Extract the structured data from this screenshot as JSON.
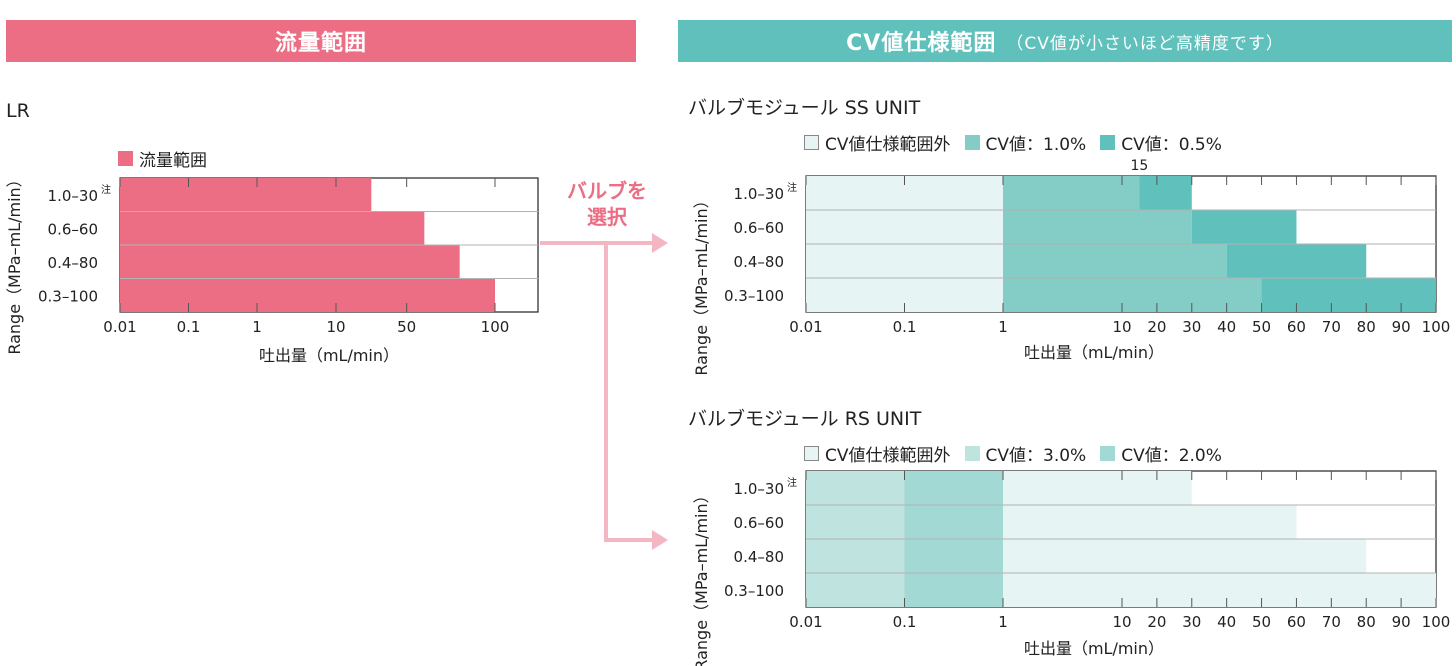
{
  "colors": {
    "pink": "#ec6e84",
    "teal": "#5fc0bc",
    "arrow": "#f4b6c2",
    "outside_fill": "#e6f4f3",
    "cv_1_0": "#83cdc6",
    "cv_0_5": "#5fc0bc",
    "cv_3_0": "#bfe3de",
    "cv_2_0": "#a3d9d4",
    "grid": "#b3b3b3",
    "axis": "#222222"
  },
  "banners": {
    "left": "流量範囲",
    "right_main": "CV値仕様範囲",
    "right_sub": "（CV値が小さいほど高精度です）"
  },
  "arrow_label": [
    "バルブを",
    "選択"
  ],
  "chart_data": [
    {
      "type": "bar",
      "orientation": "horizontal",
      "title": "LR",
      "x_scale": "custom-log",
      "xlim": [
        0.01,
        100
      ],
      "xticks": [
        "0.01",
        "0.1",
        "1",
        "10",
        "50",
        "100"
      ],
      "xlabel": "吐出量（mL/min）",
      "ylabel": "Range（MPa–mL/min）",
      "categories": [
        "1.0–30",
        "0.6–60",
        "0.4–80",
        "0.3–100"
      ],
      "note_marks": [
        "注",
        "",
        "",
        ""
      ],
      "legend": [
        {
          "name": "流量範囲",
          "color": "#ec6e84"
        }
      ],
      "series": [
        {
          "name": "流量範囲",
          "color": "#ec6e84",
          "ranges": [
            [
              0.01,
              30
            ],
            [
              0.01,
              60
            ],
            [
              0.01,
              80
            ],
            [
              0.01,
              100
            ]
          ]
        }
      ],
      "grid": true
    },
    {
      "type": "bar",
      "orientation": "horizontal",
      "title": "バルブモジュール SS UNIT",
      "x_scale": "custom-log",
      "xlim": [
        0.01,
        100
      ],
      "xticks": [
        "0.01",
        "0.1",
        "1",
        "10",
        "20",
        "30",
        "40",
        "50",
        "60",
        "70",
        "80",
        "90",
        "100"
      ],
      "xlabel": "吐出量（mL/min）",
      "ylabel": "Range（MPa–mL/min）",
      "categories": [
        "1.0–30",
        "0.6–60",
        "0.4–80",
        "0.3–100"
      ],
      "note_marks": [
        "注",
        "",
        "",
        ""
      ],
      "annotation": "15",
      "legend": [
        {
          "name": "CV値仕様範囲外",
          "color": "#e6f4f3"
        },
        {
          "name": "CV値：1.0%",
          "color": "#83cdc6"
        },
        {
          "name": "CV値：0.5%",
          "color": "#5fc0bc"
        }
      ],
      "series": [
        {
          "name": "CV値仕様範囲外",
          "color": "#e6f4f3",
          "ranges": [
            [
              0.01,
              1
            ],
            [
              0.01,
              1
            ],
            [
              0.01,
              1
            ],
            [
              0.01,
              1
            ]
          ]
        },
        {
          "name": "CV値：1.0%",
          "color": "#83cdc6",
          "ranges": [
            [
              1,
              15
            ],
            [
              1,
              30
            ],
            [
              1,
              40
            ],
            [
              1,
              50
            ]
          ]
        },
        {
          "name": "CV値：0.5%",
          "color": "#5fc0bc",
          "ranges": [
            [
              15,
              30
            ],
            [
              30,
              60
            ],
            [
              40,
              80
            ],
            [
              50,
              100
            ]
          ]
        }
      ],
      "grid": true
    },
    {
      "type": "bar",
      "orientation": "horizontal",
      "title": "バルブモジュール RS UNIT",
      "x_scale": "custom-log",
      "xlim": [
        0.01,
        100
      ],
      "xticks": [
        "0.01",
        "0.1",
        "1",
        "10",
        "20",
        "30",
        "40",
        "50",
        "60",
        "70",
        "80",
        "90",
        "100"
      ],
      "xlabel": "吐出量（mL/min）",
      "ylabel": "Range（MPa–mL/min）",
      "categories": [
        "1.0–30",
        "0.6–60",
        "0.4–80",
        "0.3–100"
      ],
      "note_marks": [
        "注",
        "",
        "",
        ""
      ],
      "legend": [
        {
          "name": "CV値仕様範囲外",
          "color": "#e6f4f3"
        },
        {
          "name": "CV値：3.0%",
          "color": "#bfe3de"
        },
        {
          "name": "CV値：2.0%",
          "color": "#a3d9d4"
        }
      ],
      "series": [
        {
          "name": "CV値：3.0%",
          "color": "#bfe3de",
          "ranges": [
            [
              0.01,
              0.1
            ],
            [
              0.01,
              0.1
            ],
            [
              0.01,
              0.1
            ],
            [
              0.01,
              0.1
            ]
          ]
        },
        {
          "name": "CV値：2.0%",
          "color": "#a3d9d4",
          "ranges": [
            [
              0.1,
              1
            ],
            [
              0.1,
              1
            ],
            [
              0.1,
              1
            ],
            [
              0.1,
              1
            ]
          ]
        },
        {
          "name": "CV値仕様範囲外",
          "color": "#e6f4f3",
          "ranges": [
            [
              1,
              30
            ],
            [
              1,
              60
            ],
            [
              1,
              80
            ],
            [
              1,
              100
            ]
          ]
        }
      ],
      "grid": true
    }
  ]
}
